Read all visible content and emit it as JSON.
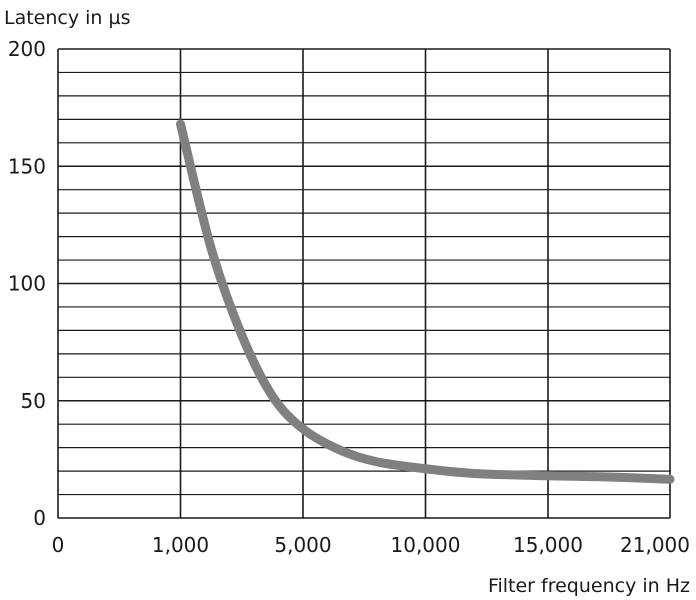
{
  "chart_data": {
    "type": "line",
    "title": "",
    "ylabel": "Latency in µs",
    "xlabel": "Filter frequency in Hz",
    "x_tick_labels": [
      "0",
      "1,000",
      "5,000",
      "10,000",
      "15,000",
      "21,000"
    ],
    "y_tick_labels": [
      "0",
      "50",
      "100",
      "150",
      "200"
    ],
    "y_ticks": [
      0,
      50,
      100,
      150,
      200
    ],
    "ylim": [
      0,
      200
    ],
    "y_minor_step": 10,
    "grid": true,
    "x_scale": "categorical-ticks",
    "series": [
      {
        "color": "#808080",
        "x": [
          1000,
          2000,
          3000,
          4000,
          5000,
          6500,
          8000,
          10000,
          12000,
          15000,
          18000,
          21000
        ],
        "y": [
          168,
          115,
          78,
          52,
          38,
          29,
          24,
          21,
          19,
          18,
          17.5,
          16.5
        ]
      }
    ]
  }
}
